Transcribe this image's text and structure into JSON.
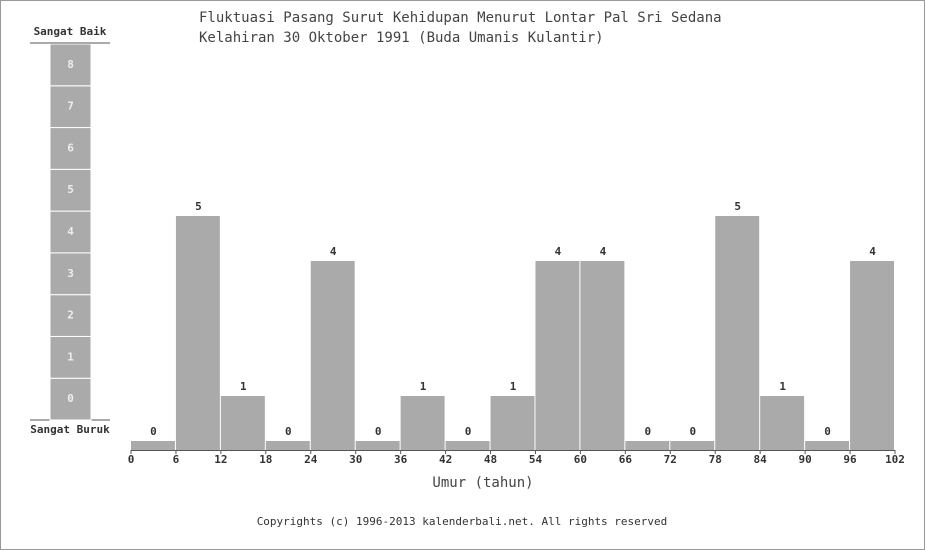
{
  "chart_data": {
    "type": "histogram",
    "title": "Fluktuasi Pasang Surut Kehidupan Menurut Lontar Pal Sri Sedana",
    "subtitle": "Kelahiran 30 Oktober 1991 (Buda Umanis Kulantir)",
    "xlabel": "Umur (tahun)",
    "bins": [
      0,
      6,
      12,
      18,
      24,
      30,
      36,
      42,
      48,
      54,
      60,
      66,
      72,
      78,
      84,
      90,
      96,
      102
    ],
    "values": [
      0,
      5,
      1,
      0,
      4,
      0,
      1,
      0,
      1,
      4,
      4,
      0,
      0,
      5,
      1,
      0,
      4
    ],
    "color": "#aaaaaa",
    "xlim": [
      0,
      102
    ],
    "xticks": [
      0,
      6,
      12,
      18,
      24,
      30,
      36,
      42,
      48,
      54,
      60,
      66,
      72,
      78,
      84,
      90,
      96,
      102
    ],
    "ylim": [
      0,
      8
    ],
    "gauge": {
      "top_label": "Sangat Baik",
      "bottom_label": "Sangat Buruk",
      "levels": [
        0,
        1,
        2,
        3,
        4,
        5,
        6,
        7,
        8
      ]
    }
  },
  "footer": "Copyrights (c) 1996-2013 kalenderbali.net. All rights reserved"
}
